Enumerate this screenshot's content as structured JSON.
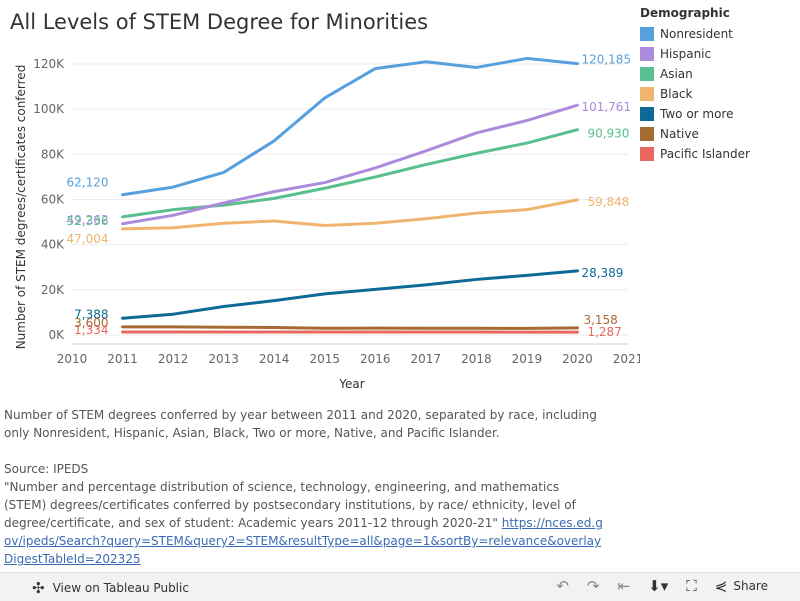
{
  "chart_data": {
    "type": "line",
    "title": "All Levels of STEM Degree for Minorities",
    "xlabel": "Year",
    "ylabel": "Number of STEM degrees/certificates conferred",
    "x": [
      2011,
      2012,
      2013,
      2014,
      2015,
      2016,
      2017,
      2018,
      2019,
      2020
    ],
    "x_ticks": [
      "2010",
      "2011",
      "2012",
      "2013",
      "2014",
      "2015",
      "2016",
      "2017",
      "2018",
      "2019",
      "2020",
      "2021"
    ],
    "xlim": [
      2010,
      2021
    ],
    "ylim": [
      -4000,
      128000
    ],
    "y_ticks": [
      {
        "value": 0,
        "label": "0K"
      },
      {
        "value": 20000,
        "label": "20K"
      },
      {
        "value": 40000,
        "label": "40K"
      },
      {
        "value": 60000,
        "label": "60K"
      },
      {
        "value": 80000,
        "label": "80K"
      },
      {
        "value": 100000,
        "label": "100K"
      },
      {
        "value": 120000,
        "label": "120K"
      }
    ],
    "legend_title": "Demographic",
    "series": [
      {
        "name": "Nonresident",
        "color": "#57a0dd",
        "values": [
          62120,
          65500,
          72000,
          86000,
          105000,
          118000,
          121000,
          118500,
          122500,
          120185
        ],
        "start_label": "62,120",
        "end_label": "120,185"
      },
      {
        "name": "Hispanic",
        "color": "#ad8bdc",
        "values": [
          49262,
          53000,
          58500,
          63500,
          67500,
          74000,
          81500,
          89500,
          95000,
          101761
        ],
        "start_label": "49,262",
        "end_label": "101,761"
      },
      {
        "name": "Asian",
        "color": "#59bf8e",
        "values": [
          52336,
          55500,
          57500,
          60500,
          65000,
          70000,
          75500,
          80500,
          85000,
          90930
        ],
        "start_label": "52,336",
        "end_label": "90,930"
      },
      {
        "name": "Black",
        "color": "#efb56e",
        "values": [
          47004,
          47500,
          49500,
          50500,
          48500,
          49500,
          51500,
          54000,
          55500,
          59848
        ],
        "start_label": "47,004",
        "end_label": "59,848"
      },
      {
        "name": "Two or more",
        "color": "#0d6a96",
        "values": [
          7388,
          9200,
          12600,
          15200,
          18200,
          20200,
          22200,
          24600,
          26400,
          28389
        ],
        "start_label": "7,388",
        "end_label": "28,389"
      },
      {
        "name": "Native",
        "color": "#a66b33",
        "values": [
          3600,
          3600,
          3400,
          3300,
          3000,
          3050,
          3000,
          3000,
          2900,
          3158
        ],
        "start_label": "3,600",
        "end_label": "3,158"
      },
      {
        "name": "Pacific Islander",
        "color": "#e8675f",
        "values": [
          1334,
          1330,
          1320,
          1310,
          1300,
          1300,
          1290,
          1290,
          1285,
          1287
        ],
        "start_label": "1,334",
        "end_label": "1,287"
      }
    ]
  },
  "caption": {
    "description": "Number of STEM degrees conferred by year between 2011 and 2020, separated by race, including only Nonresident, Hispanic, Asian, Black, Two or more, Native, and Pacific Islander.",
    "source_label": "Source: IPEDS",
    "citation": "\"Number and percentage distribution of science, technology, engineering, and mathematics (STEM) degrees/certificates conferred by postsecondary institutions, by race/ ethnicity, level of degree/certificate, and sex of student: Academic years 2011-12 through 2020-21\"",
    "link_text": "https://nces.ed.gov/ipeds/Search?query=STEM&query2=STEM&resultType=all&page=1&sortBy=relevance&overlayDigestTableId=202325"
  },
  "toolbar": {
    "view_label": "View on Tableau Public",
    "share_label": "Share"
  }
}
